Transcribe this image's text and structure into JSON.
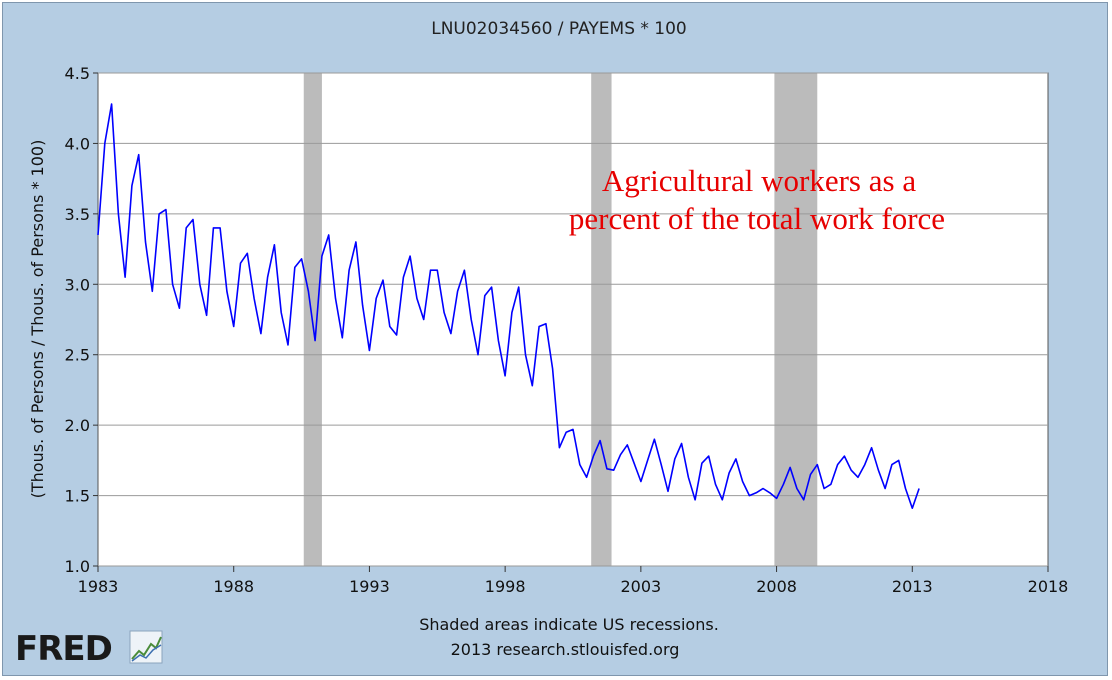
{
  "chart_data": {
    "type": "line",
    "title": "LNU02034560 / PAYEMS * 100",
    "ylabel": "(Thous. of Persons / Thous. of Persons * 100)",
    "xlabel": "",
    "xlim": [
      1983,
      2018
    ],
    "ylim": [
      1.0,
      4.5
    ],
    "x_ticks": [
      "1983",
      "1988",
      "1993",
      "1998",
      "2003",
      "2008",
      "2013",
      "2018"
    ],
    "y_ticks": [
      "1.0",
      "1.5",
      "2.0",
      "2.5",
      "3.0",
      "3.5",
      "4.0",
      "4.5"
    ],
    "grid": true,
    "line_color": "#0000ff",
    "recession_color": "#bbbbbb",
    "recessions": [
      {
        "start": 1990.58,
        "end": 1991.25
      },
      {
        "start": 2001.17,
        "end": 2001.92
      },
      {
        "start": 2007.92,
        "end": 2009.5
      }
    ],
    "annotation": {
      "line1": "Agricultural workers as a",
      "line2": "percent of the total work force",
      "color": "#e60000"
    },
    "series": [
      {
        "x": [
          1983.0,
          1983.25,
          1983.5,
          1983.75,
          1984.0,
          1984.25,
          1984.5,
          1984.75,
          1985.0,
          1985.25,
          1985.5,
          1985.75,
          1986.0,
          1986.25,
          1986.5,
          1986.75,
          1987.0,
          1987.25,
          1987.5,
          1987.75,
          1988.0,
          1988.25,
          1988.5,
          1988.75,
          1989.0,
          1989.25,
          1989.5,
          1989.75,
          1990.0,
          1990.25,
          1990.5,
          1990.75,
          1991.0,
          1991.25,
          1991.5,
          1991.75,
          1992.0,
          1992.25,
          1992.5,
          1992.75,
          1993.0,
          1993.25,
          1993.5,
          1993.75,
          1994.0,
          1994.25,
          1994.5,
          1994.75,
          1995.0,
          1995.25,
          1995.5,
          1995.75,
          1996.0,
          1996.25,
          1996.5,
          1996.75,
          1997.0,
          1997.25,
          1997.5,
          1997.75,
          1998.0,
          1998.25,
          1998.5,
          1998.75,
          1999.0,
          1999.25,
          1999.5,
          1999.75,
          2000.0,
          2000.25,
          2000.5,
          2000.75,
          2001.0,
          2001.25,
          2001.5,
          2001.75,
          2002.0,
          2002.25,
          2002.5,
          2002.75,
          2003.0,
          2003.25,
          2003.5,
          2003.75,
          2004.0,
          2004.25,
          2004.5,
          2004.75,
          2005.0,
          2005.25,
          2005.5,
          2005.75,
          2006.0,
          2006.25,
          2006.5,
          2006.75,
          2007.0,
          2007.25,
          2007.5,
          2007.75,
          2008.0,
          2008.25,
          2008.5,
          2008.75,
          2009.0,
          2009.25,
          2009.5,
          2009.75,
          2010.0,
          2010.25,
          2010.5,
          2010.75,
          2011.0,
          2011.25,
          2011.5,
          2011.75,
          2012.0,
          2012.25,
          2012.5,
          2012.75,
          2013.0,
          2013.25
        ],
        "y": [
          3.35,
          4.0,
          4.28,
          3.5,
          3.05,
          3.7,
          3.92,
          3.3,
          2.95,
          3.5,
          3.53,
          3.0,
          2.83,
          3.4,
          3.46,
          3.0,
          2.78,
          3.4,
          3.4,
          2.95,
          2.7,
          3.15,
          3.22,
          2.9,
          2.65,
          3.05,
          3.28,
          2.8,
          2.57,
          3.12,
          3.18,
          2.95,
          2.6,
          3.2,
          3.35,
          2.9,
          2.62,
          3.1,
          3.3,
          2.85,
          2.53,
          2.9,
          3.03,
          2.7,
          2.64,
          3.05,
          3.2,
          2.9,
          2.75,
          3.1,
          3.1,
          2.8,
          2.65,
          2.95,
          3.1,
          2.75,
          2.5,
          2.92,
          2.98,
          2.6,
          2.35,
          2.8,
          2.98,
          2.5,
          2.28,
          2.7,
          2.72,
          2.4,
          1.84,
          1.95,
          1.97,
          1.72,
          1.63,
          1.78,
          1.89,
          1.69,
          1.68,
          1.79,
          1.86,
          1.73,
          1.6,
          1.75,
          1.9,
          1.72,
          1.53,
          1.76,
          1.87,
          1.63,
          1.47,
          1.73,
          1.78,
          1.58,
          1.47,
          1.66,
          1.76,
          1.6,
          1.5,
          1.52,
          1.55,
          1.52,
          1.48,
          1.58,
          1.7,
          1.55,
          1.47,
          1.65,
          1.72,
          1.55,
          1.58,
          1.72,
          1.78,
          1.68,
          1.63,
          1.72,
          1.84,
          1.68,
          1.55,
          1.72,
          1.75,
          1.55,
          1.41,
          1.55
        ]
      }
    ]
  },
  "footer": {
    "note": "Shaded areas indicate US recessions.",
    "source": "2013 research.stlouisfed.org"
  },
  "logo": {
    "text": "FRED",
    "name": "fred-logo"
  }
}
